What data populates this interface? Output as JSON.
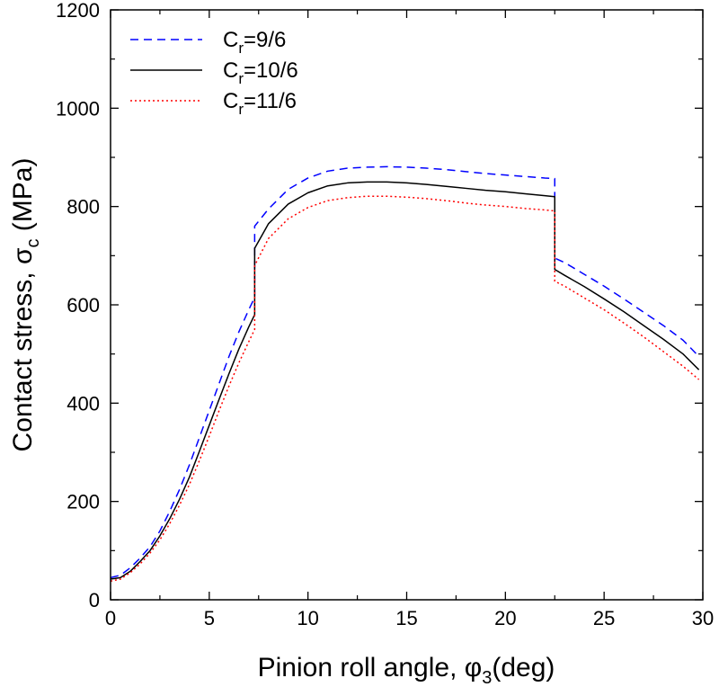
{
  "chart_data": {
    "type": "line",
    "xlabel": {
      "main": "Pinion roll angle, φ",
      "sub": "3",
      "tail": "(deg)"
    },
    "ylabel": {
      "main": "Contact stress, σ",
      "sub": "c",
      "tail": " (MPa)"
    },
    "xlim": [
      0,
      30
    ],
    "ylim": [
      0,
      1200
    ],
    "xticks": [
      "0",
      "5",
      "10",
      "15",
      "20",
      "25",
      "30"
    ],
    "yticks": [
      "0",
      "200",
      "400",
      "600",
      "800",
      "1000",
      "1200"
    ],
    "grid": false,
    "legend_position": "top-left",
    "series": [
      {
        "name": "9/6",
        "label_main": "C",
        "label_sub": "r",
        "label_tail": "=9/6",
        "color": "#0000ff",
        "dash": "dashed",
        "segments": [
          [
            [
              0,
              45
            ],
            [
              0.5,
              50
            ],
            [
              1,
              65
            ],
            [
              1.5,
              85
            ],
            [
              2,
              108
            ],
            [
              2.5,
              140
            ],
            [
              3,
              180
            ],
            [
              3.5,
              225
            ],
            [
              4,
              275
            ],
            [
              4.5,
              330
            ],
            [
              5,
              385
            ],
            [
              5.5,
              440
            ],
            [
              6,
              495
            ],
            [
              6.5,
              545
            ],
            [
              7,
              590
            ],
            [
              7.3,
              615
            ]
          ],
          [
            [
              7.3,
              760
            ],
            [
              8,
              795
            ],
            [
              9,
              835
            ],
            [
              10,
              858
            ],
            [
              11,
              872
            ],
            [
              12,
              878
            ],
            [
              13,
              880
            ],
            [
              14,
              881
            ],
            [
              15,
              880
            ],
            [
              16,
              878
            ],
            [
              17,
              875
            ],
            [
              18,
              871
            ],
            [
              19,
              867
            ],
            [
              20,
              864
            ],
            [
              21,
              861
            ],
            [
              22,
              858
            ],
            [
              22.5,
              857
            ]
          ],
          [
            [
              22.5,
              695
            ],
            [
              23,
              686
            ],
            [
              24,
              662
            ],
            [
              25,
              638
            ],
            [
              26,
              612
            ],
            [
              27,
              585
            ],
            [
              28,
              558
            ],
            [
              29,
              528
            ],
            [
              29.8,
              495
            ]
          ]
        ]
      },
      {
        "name": "10/6",
        "label_main": "C",
        "label_sub": "r",
        "label_tail": "=10/6",
        "color": "#000000",
        "dash": "solid",
        "segments": [
          [
            [
              0,
              42
            ],
            [
              0.5,
              45
            ],
            [
              1,
              58
            ],
            [
              1.5,
              78
            ],
            [
              2,
              100
            ],
            [
              2.5,
              130
            ],
            [
              3,
              165
            ],
            [
              3.5,
              205
            ],
            [
              4,
              250
            ],
            [
              4.5,
              302
            ],
            [
              5,
              355
            ],
            [
              5.5,
              408
            ],
            [
              6,
              460
            ],
            [
              6.5,
              510
            ],
            [
              7,
              555
            ],
            [
              7.3,
              580
            ]
          ],
          [
            [
              7.3,
              715
            ],
            [
              8,
              765
            ],
            [
              9,
              805
            ],
            [
              10,
              828
            ],
            [
              11,
              842
            ],
            [
              12,
              848
            ],
            [
              13,
              850
            ],
            [
              14,
              850
            ],
            [
              15,
              848
            ],
            [
              16,
              845
            ],
            [
              17,
              841
            ],
            [
              18,
              837
            ],
            [
              19,
              833
            ],
            [
              20,
              830
            ],
            [
              21,
              826
            ],
            [
              22,
              822
            ],
            [
              22.5,
              820
            ]
          ],
          [
            [
              22.5,
              672
            ],
            [
              23,
              660
            ],
            [
              24,
              637
            ],
            [
              25,
              612
            ],
            [
              26,
              586
            ],
            [
              27,
              558
            ],
            [
              28,
              530
            ],
            [
              29,
              500
            ],
            [
              29.8,
              468
            ]
          ]
        ]
      },
      {
        "name": "11/6",
        "label_main": "C",
        "label_sub": "r",
        "label_tail": "=11/6",
        "color": "#ff0000",
        "dash": "dotted",
        "segments": [
          [
            [
              0,
              38
            ],
            [
              0.5,
              42
            ],
            [
              1,
              55
            ],
            [
              1.5,
              73
            ],
            [
              2,
              95
            ],
            [
              2.5,
              122
            ],
            [
              3,
              155
            ],
            [
              3.5,
              193
            ],
            [
              4,
              235
            ],
            [
              4.5,
              283
            ],
            [
              5,
              333
            ],
            [
              5.5,
              385
            ],
            [
              6,
              435
            ],
            [
              6.5,
              482
            ],
            [
              7,
              525
            ],
            [
              7.3,
              550
            ]
          ],
          [
            [
              7.3,
              680
            ],
            [
              8,
              735
            ],
            [
              9,
              775
            ],
            [
              10,
              798
            ],
            [
              11,
              812
            ],
            [
              12,
              818
            ],
            [
              13,
              821
            ],
            [
              14,
              821
            ],
            [
              15,
              819
            ],
            [
              16,
              816
            ],
            [
              17,
              812
            ],
            [
              18,
              807
            ],
            [
              19,
              803
            ],
            [
              20,
              800
            ],
            [
              21,
              796
            ],
            [
              22,
              793
            ],
            [
              22.5,
              791
            ]
          ],
          [
            [
              22.5,
              648
            ],
            [
              23,
              638
            ],
            [
              24,
              614
            ],
            [
              25,
              590
            ],
            [
              26,
              563
            ],
            [
              27,
              535
            ],
            [
              28,
              505
            ],
            [
              29,
              475
            ],
            [
              29.8,
              448
            ]
          ]
        ]
      }
    ]
  }
}
